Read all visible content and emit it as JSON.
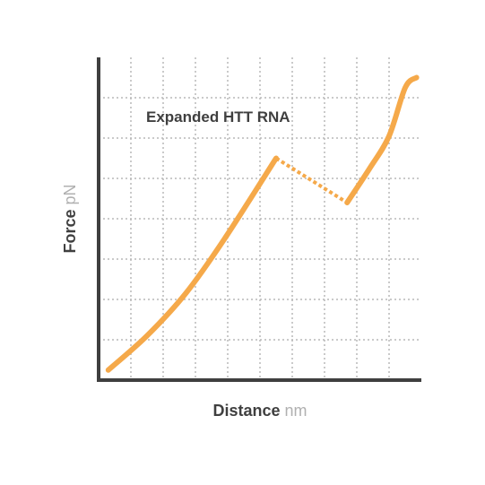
{
  "chart_data": {
    "type": "line",
    "title": "",
    "annotation": "Expanded HTT RNA",
    "xlabel": "Distance",
    "xunit": "nm",
    "ylabel": "Force",
    "yunit": "pN",
    "grid": true,
    "grid_style": "dotted",
    "xlim": [
      0,
      10
    ],
    "ylim": [
      0,
      8
    ],
    "x_ticks_shown": false,
    "y_ticks_shown": false,
    "colors": {
      "curve": "#f5a94a",
      "axis": "#3f3f3f",
      "grid": "#b8b8b8"
    },
    "series": [
      {
        "style": "solid",
        "points": [
          [
            0.3,
            0.25
          ],
          [
            1.5,
            1.1
          ],
          [
            2.7,
            2.15
          ],
          [
            3.9,
            3.5
          ],
          [
            5.5,
            5.5
          ]
        ]
      },
      {
        "style": "dotted",
        "points": [
          [
            5.5,
            5.5
          ],
          [
            7.7,
            4.4
          ]
        ]
      },
      {
        "style": "solid",
        "points": [
          [
            7.7,
            4.4
          ],
          [
            8.4,
            5.25
          ],
          [
            9.0,
            6.05
          ],
          [
            9.5,
            7.25
          ],
          [
            9.85,
            7.5
          ]
        ]
      }
    ]
  }
}
